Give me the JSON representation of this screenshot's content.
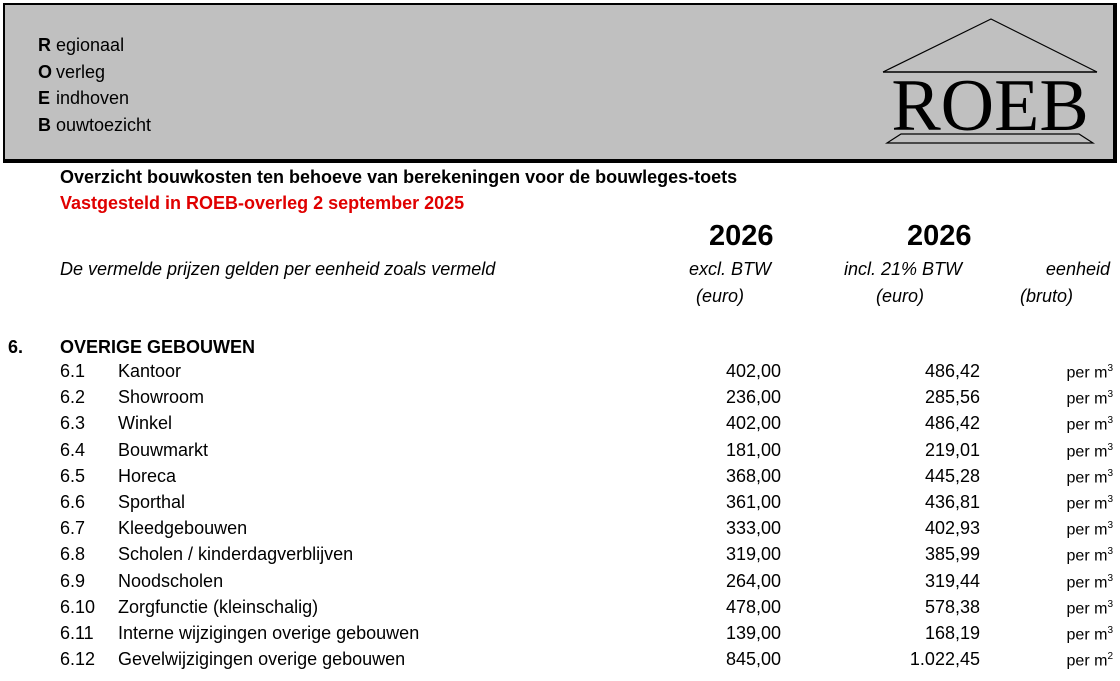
{
  "header": {
    "acronym": [
      {
        "letter": "R",
        "rest": "egionaal"
      },
      {
        "letter": "O",
        "rest": "verleg"
      },
      {
        "letter": "E",
        "rest": "indhoven"
      },
      {
        "letter": "B",
        "rest": "ouwtoezicht"
      }
    ],
    "logo_text": "ROEB"
  },
  "title": "Overzicht bouwkosten ten behoeve van berekeningen voor de bouwleges-toets",
  "subtitle": "Vastgesteld in ROEB-overleg 2 september 2025",
  "subtitle_color": "#e00000",
  "columns": {
    "note": "De vermelde prijzen gelden per eenheid zoals vermeld",
    "excl": {
      "year": "2026",
      "line1": "excl. BTW",
      "line2": "(euro)"
    },
    "incl": {
      "year": "2026",
      "line1": "incl. 21% BTW",
      "line2": "(euro)"
    },
    "unit": {
      "line1": "eenheid",
      "line2": "(bruto)"
    }
  },
  "section": {
    "number": "6.",
    "title": "OVERIGE GEBOUWEN"
  },
  "rows": [
    {
      "n": "6.1",
      "label": "Kantoor",
      "excl": "402,00",
      "incl": "486,42",
      "unit": "per m",
      "exp": "3"
    },
    {
      "n": "6.2",
      "label": "Showroom",
      "excl": "236,00",
      "incl": "285,56",
      "unit": "per m",
      "exp": "3"
    },
    {
      "n": "6.3",
      "label": "Winkel",
      "excl": "402,00",
      "incl": "486,42",
      "unit": "per m",
      "exp": "3"
    },
    {
      "n": "6.4",
      "label": "Bouwmarkt",
      "excl": "181,00",
      "incl": "219,01",
      "unit": "per m",
      "exp": "3"
    },
    {
      "n": "6.5",
      "label": "Horeca",
      "excl": "368,00",
      "incl": "445,28",
      "unit": "per m",
      "exp": "3"
    },
    {
      "n": "6.6",
      "label": "Sporthal",
      "excl": "361,00",
      "incl": "436,81",
      "unit": "per m",
      "exp": "3"
    },
    {
      "n": "6.7",
      "label": "Kleedgebouwen",
      "excl": "333,00",
      "incl": "402,93",
      "unit": "per m",
      "exp": "3"
    },
    {
      "n": "6.8",
      "label": "Scholen / kinderdagverblijven",
      "excl": "319,00",
      "incl": "385,99",
      "unit": "per m",
      "exp": "3"
    },
    {
      "n": "6.9",
      "label": "Noodscholen",
      "excl": "264,00",
      "incl": "319,44",
      "unit": "per m",
      "exp": "3"
    },
    {
      "n": "6.10",
      "label": "Zorgfunctie (kleinschalig)",
      "excl": "478,00",
      "incl": "578,38",
      "unit": "per m",
      "exp": "3"
    },
    {
      "n": "6.11",
      "label": "Interne wijzigingen overige gebouwen",
      "excl": "139,00",
      "incl": "168,19",
      "unit": "per m",
      "exp": "3"
    },
    {
      "n": "6.12",
      "label": "Gevelwijzigingen overige gebouwen",
      "excl": "845,00",
      "incl": "1.022,45",
      "unit": "per m",
      "exp": "2"
    }
  ]
}
